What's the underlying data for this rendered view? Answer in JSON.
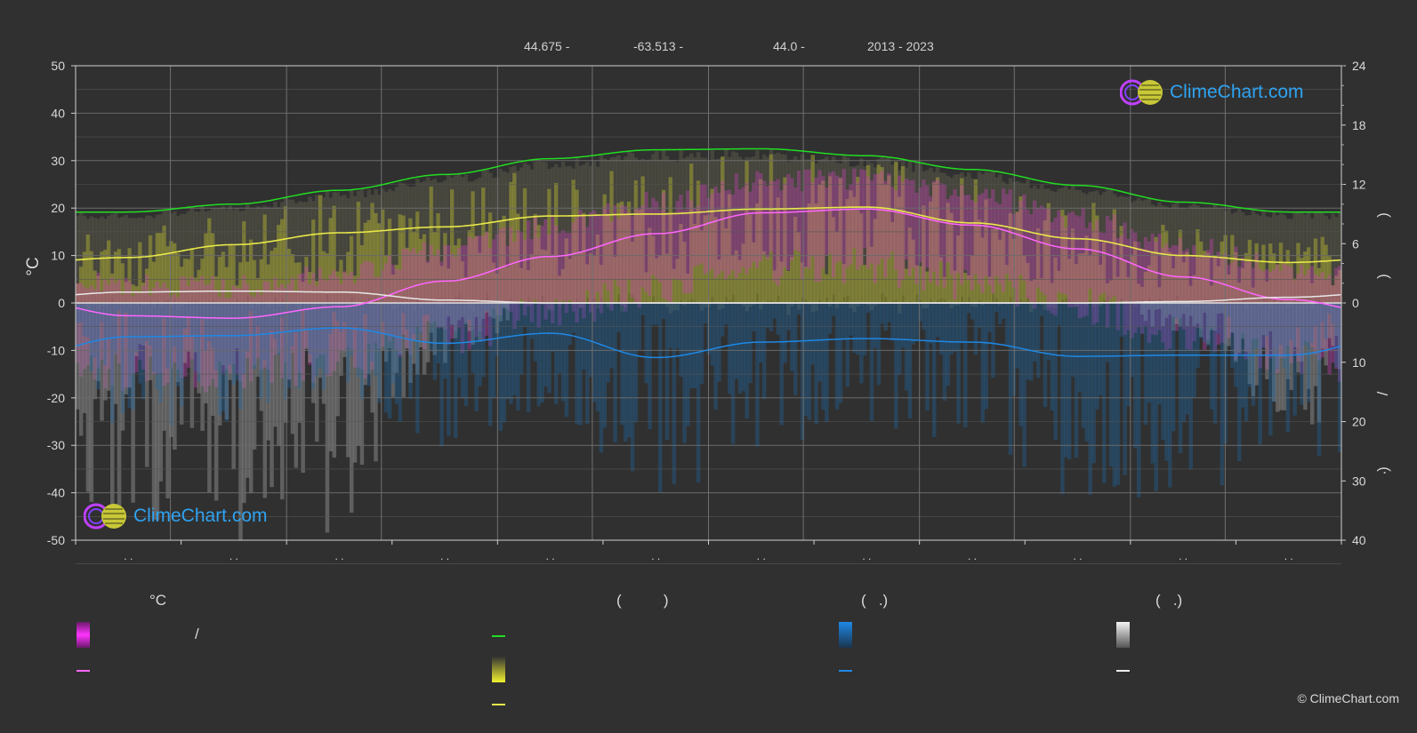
{
  "header": {
    "lat": "44.675 -",
    "lon": "-63.513 -",
    "elev": "44.0 -",
    "years": "2013 - 2023"
  },
  "brand": {
    "name": "ClimeChart.com",
    "copyright": "© ClimeChart.com"
  },
  "legend": {
    "temp_unit": "°C",
    "sun_head": "(          )",
    "rain_head": "(   .)",
    "snow_head": "(   .)",
    "range_sep": "/"
  },
  "colors": {
    "daylight": "#22dd22",
    "sunshine": "#e8e84a",
    "maxtemp": "#ff66ff",
    "rain": "#1e88e5",
    "snow": "#e8e8e8"
  },
  "chart_data": {
    "type": "line",
    "x_tick_labels": [
      ". .",
      ". .",
      ". .",
      ". .",
      ". .",
      ". .",
      ". .",
      ". .",
      ". .",
      ". .",
      ". .",
      ". ."
    ],
    "ylim_left": [
      -50,
      50
    ],
    "yticks_left": [
      50,
      40,
      30,
      20,
      10,
      0,
      -10,
      -20,
      -30,
      -40,
      -50
    ],
    "ylabel_left": "°C",
    "right_upper_ticks": [
      24,
      18,
      12,
      6,
      0
    ],
    "right_lower_ticks": [
      10,
      20,
      30,
      40
    ],
    "right_axis_glyphs": [
      ")",
      ")",
      "/",
      ")",
      "·"
    ],
    "series": [
      {
        "key": "daylight",
        "unit": "h",
        "values": [
          9.2,
          10.0,
          11.4,
          13.0,
          14.6,
          15.5,
          15.6,
          14.9,
          13.5,
          11.9,
          10.2,
          9.2
        ]
      },
      {
        "key": "sunshine",
        "unit": "h",
        "values": [
          4.6,
          5.9,
          7.1,
          7.7,
          8.8,
          9.0,
          9.5,
          9.7,
          8.1,
          6.5,
          4.8,
          4.1
        ]
      },
      {
        "key": "temp",
        "unit": "°C",
        "values": [
          -2.7,
          -3.2,
          -0.8,
          4.6,
          9.8,
          14.6,
          19.0,
          19.8,
          16.4,
          11.4,
          5.5,
          0.7
        ]
      },
      {
        "key": "snow_depth",
        "unit": "cm",
        "values": [
          2.3,
          2.5,
          2.3,
          0.6,
          0.0,
          0.0,
          0.0,
          0.0,
          0.0,
          0.0,
          0.3,
          1.2
        ]
      },
      {
        "key": "precip",
        "unit": "mm",
        "values": [
          5.7,
          5.5,
          4.2,
          6.8,
          5.1,
          9.2,
          6.6,
          6.0,
          6.6,
          9.0,
          8.8,
          8.8
        ]
      }
    ]
  }
}
